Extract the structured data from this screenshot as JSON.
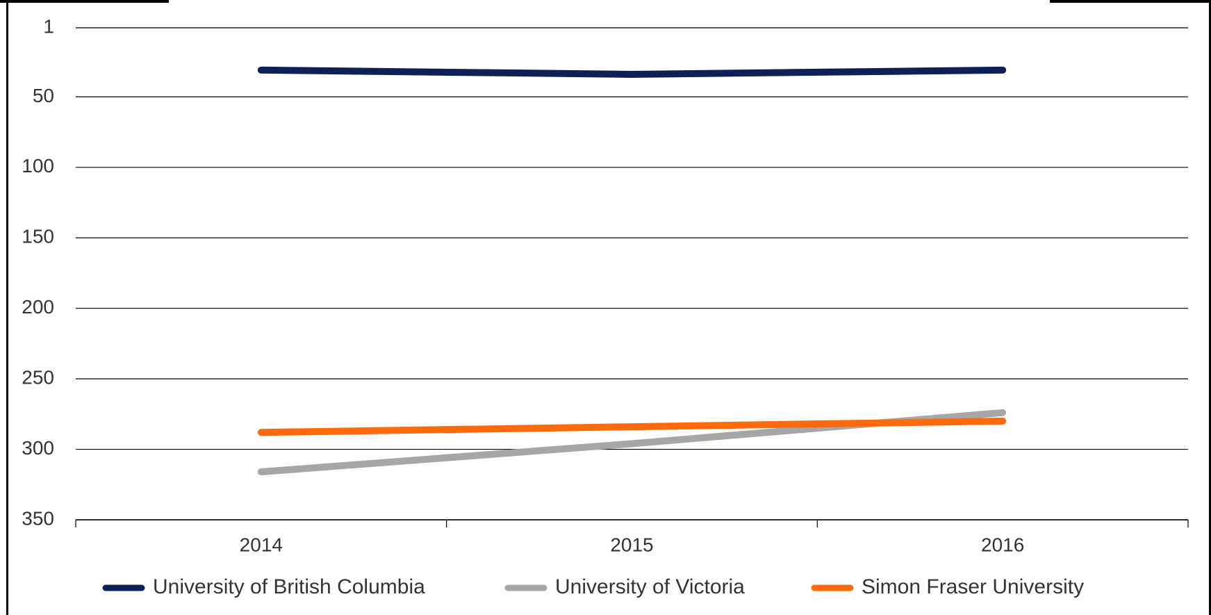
{
  "chart_data": {
    "type": "line",
    "categories": [
      "2014",
      "2015",
      "2016"
    ],
    "series": [
      {
        "name": "University of British Columbia",
        "color": "#0d2157",
        "values": [
          31,
          34,
          31
        ]
      },
      {
        "name": "University of Victoria",
        "color": "#a6a6a6",
        "values": [
          316,
          296,
          274
        ]
      },
      {
        "name": "Simon Fraser University",
        "color": "#ff6a0d",
        "values": [
          288,
          284,
          280
        ]
      }
    ],
    "ylim": [
      1,
      350
    ],
    "yticks": [
      1,
      50,
      100,
      150,
      200,
      250,
      300,
      350
    ],
    "y_reversed": true,
    "grid": true,
    "legend": "bottom"
  }
}
